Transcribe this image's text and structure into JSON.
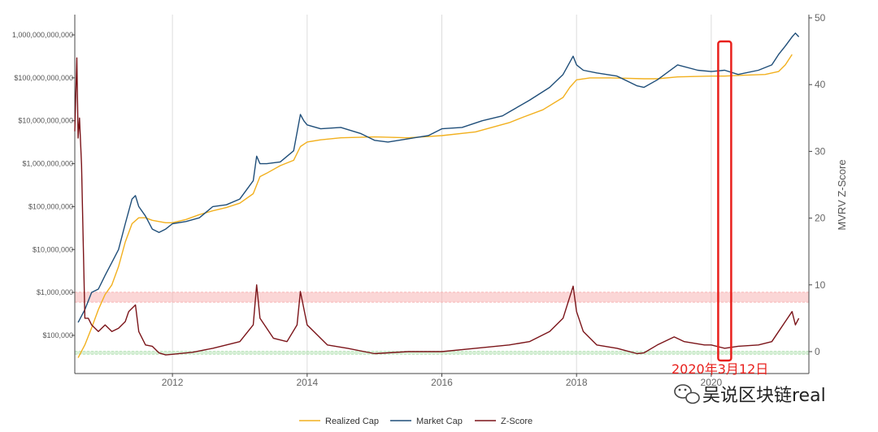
{
  "chart_data": {
    "type": "line",
    "title": "",
    "xlabel": "",
    "ylabel_left": "",
    "ylabel_right": "MVRV Z-Score",
    "y_left_scale": "log",
    "y_left_ticks": [
      100000,
      1000000,
      10000000,
      100000000,
      1000000000,
      10000000000,
      100000000000,
      1000000000000
    ],
    "y_left_tick_labels": [
      "$100,000",
      "$1,000,000",
      "$10,000,000",
      "$100,000,000",
      "$1,000,000,000",
      "$10,000,000,000",
      "$100,000,000,000",
      "1,000,000,000,000"
    ],
    "y_right_range": [
      0,
      50
    ],
    "y_right_ticks": [
      0,
      10,
      20,
      30,
      40,
      50
    ],
    "x_ticks": [
      "2012",
      "2014",
      "2016",
      "2018",
      "2020"
    ],
    "legend_position": "bottom-center",
    "grid": "vertical",
    "bands": [
      {
        "axis": "right",
        "from": 7.4,
        "to": 8.9,
        "color": "#f8b5b5"
      },
      {
        "axis": "right",
        "from": -0.4,
        "to": 0.05,
        "color": "#b9e3b9"
      }
    ],
    "series": [
      {
        "name": "Realized Cap",
        "axis": "left",
        "color": "#f2b01e",
        "x": [
          2010.6,
          2010.7,
          2010.8,
          2010.9,
          2011.0,
          2011.1,
          2011.2,
          2011.3,
          2011.4,
          2011.5,
          2011.6,
          2011.7,
          2011.8,
          2011.9,
          2012.0,
          2012.2,
          2012.4,
          2012.6,
          2012.8,
          2013.0,
          2013.2,
          2013.3,
          2013.4,
          2013.6,
          2013.8,
          2013.9,
          2014.0,
          2014.2,
          2014.5,
          2015.0,
          2015.5,
          2016.0,
          2016.5,
          2017.0,
          2017.2,
          2017.5,
          2017.8,
          2017.9,
          2018.0,
          2018.2,
          2018.5,
          2019.0,
          2019.2,
          2019.5,
          2020.0,
          2020.2,
          2020.5,
          2020.8,
          2021.0,
          2021.1,
          2021.2
        ],
        "y": [
          30000,
          60000,
          150000,
          400000,
          900000,
          1500000,
          4000000,
          15000000,
          40000000,
          55000000,
          55000000,
          48000000,
          45000000,
          42000000,
          42000000,
          50000000,
          65000000,
          80000000,
          95000000,
          120000000,
          200000000,
          500000000,
          600000000,
          900000000,
          1200000000,
          2500000000,
          3200000000,
          3600000000,
          4000000000,
          4200000000,
          4000000000,
          4500000000,
          5500000000,
          9000000000,
          12000000000,
          18000000000,
          35000000000,
          60000000000,
          90000000000,
          100000000000,
          100000000000,
          95000000000,
          95000000000,
          105000000000,
          110000000000,
          110000000000,
          115000000000,
          120000000000,
          140000000000,
          200000000000,
          350000000000
        ]
      },
      {
        "name": "Market Cap",
        "axis": "left",
        "color": "#1f4e79",
        "x": [
          2010.6,
          2010.7,
          2010.8,
          2010.9,
          2011.0,
          2011.1,
          2011.2,
          2011.3,
          2011.4,
          2011.45,
          2011.5,
          2011.6,
          2011.7,
          2011.8,
          2011.9,
          2012.0,
          2012.2,
          2012.4,
          2012.6,
          2012.8,
          2013.0,
          2013.2,
          2013.25,
          2013.3,
          2013.4,
          2013.6,
          2013.8,
          2013.9,
          2013.95,
          2014.0,
          2014.2,
          2014.5,
          2014.8,
          2015.0,
          2015.2,
          2015.5,
          2015.8,
          2016.0,
          2016.3,
          2016.6,
          2016.9,
          2017.0,
          2017.3,
          2017.6,
          2017.8,
          2017.95,
          2018.0,
          2018.1,
          2018.3,
          2018.6,
          2018.9,
          2019.0,
          2019.2,
          2019.5,
          2019.8,
          2020.0,
          2020.2,
          2020.4,
          2020.7,
          2020.9,
          2021.0,
          2021.1,
          2021.2,
          2021.25,
          2021.3
        ],
        "y": [
          200000,
          400000,
          1000000,
          1200000,
          2500000,
          5000000,
          10000000,
          40000000,
          150000000,
          180000000,
          100000000,
          60000000,
          30000000,
          25000000,
          30000000,
          40000000,
          45000000,
          55000000,
          100000000,
          110000000,
          150000000,
          400000000,
          1500000000,
          1000000000,
          1000000000,
          1100000000,
          2000000000,
          14000000000,
          10000000000,
          8000000000,
          6500000000,
          7000000000,
          5000000000,
          3500000000,
          3200000000,
          3800000000,
          4500000000,
          6500000000,
          7000000000,
          10000000000,
          13000000000,
          16000000000,
          30000000000,
          60000000000,
          120000000000,
          320000000000,
          200000000000,
          150000000000,
          130000000000,
          110000000000,
          65000000000,
          60000000000,
          90000000000,
          200000000000,
          150000000000,
          140000000000,
          150000000000,
          120000000000,
          150000000000,
          200000000000,
          350000000000,
          550000000000,
          900000000000,
          1100000000000,
          900000000000
        ]
      },
      {
        "name": "Z-Score",
        "axis": "right",
        "color": "#7b1419",
        "x": [
          2010.55,
          2010.58,
          2010.6,
          2010.62,
          2010.65,
          2010.7,
          2010.75,
          2010.8,
          2010.9,
          2011.0,
          2011.1,
          2011.2,
          2011.3,
          2011.35,
          2011.45,
          2011.5,
          2011.6,
          2011.7,
          2011.8,
          2011.9,
          2012.0,
          2012.3,
          2012.6,
          2013.0,
          2013.2,
          2013.25,
          2013.3,
          2013.5,
          2013.7,
          2013.85,
          2013.9,
          2014.0,
          2014.3,
          2014.6,
          2015.0,
          2015.5,
          2016.0,
          2016.5,
          2017.0,
          2017.3,
          2017.6,
          2017.8,
          2017.95,
          2018.0,
          2018.1,
          2018.3,
          2018.6,
          2018.9,
          2019.0,
          2019.2,
          2019.45,
          2019.6,
          2019.9,
          2020.0,
          2020.2,
          2020.4,
          2020.7,
          2020.9,
          2021.0,
          2021.1,
          2021.2,
          2021.25,
          2021.3
        ],
        "y": [
          33,
          44,
          32,
          35,
          28,
          5,
          5,
          4,
          3,
          4,
          3,
          3.5,
          4.5,
          6,
          7,
          3,
          1,
          0.8,
          -0.2,
          -0.5,
          -0.4,
          -0.1,
          0.5,
          1.5,
          4,
          10,
          5,
          2,
          1.5,
          4,
          9,
          4,
          1,
          0.5,
          -0.3,
          0,
          0,
          0.5,
          1,
          1.5,
          3,
          5,
          9.8,
          6,
          3,
          1,
          0.5,
          -0.3,
          -0.2,
          1,
          2.2,
          1.5,
          1,
          1,
          0.5,
          0.8,
          1,
          1.5,
          3,
          4.5,
          6,
          4,
          5
        ]
      }
    ]
  },
  "annotation": {
    "label": "2020年3月12日",
    "x": 2020.2,
    "color": "#e8201c"
  },
  "watermark": {
    "label": "吴说区块链real",
    "icon": "wechat-icon"
  }
}
